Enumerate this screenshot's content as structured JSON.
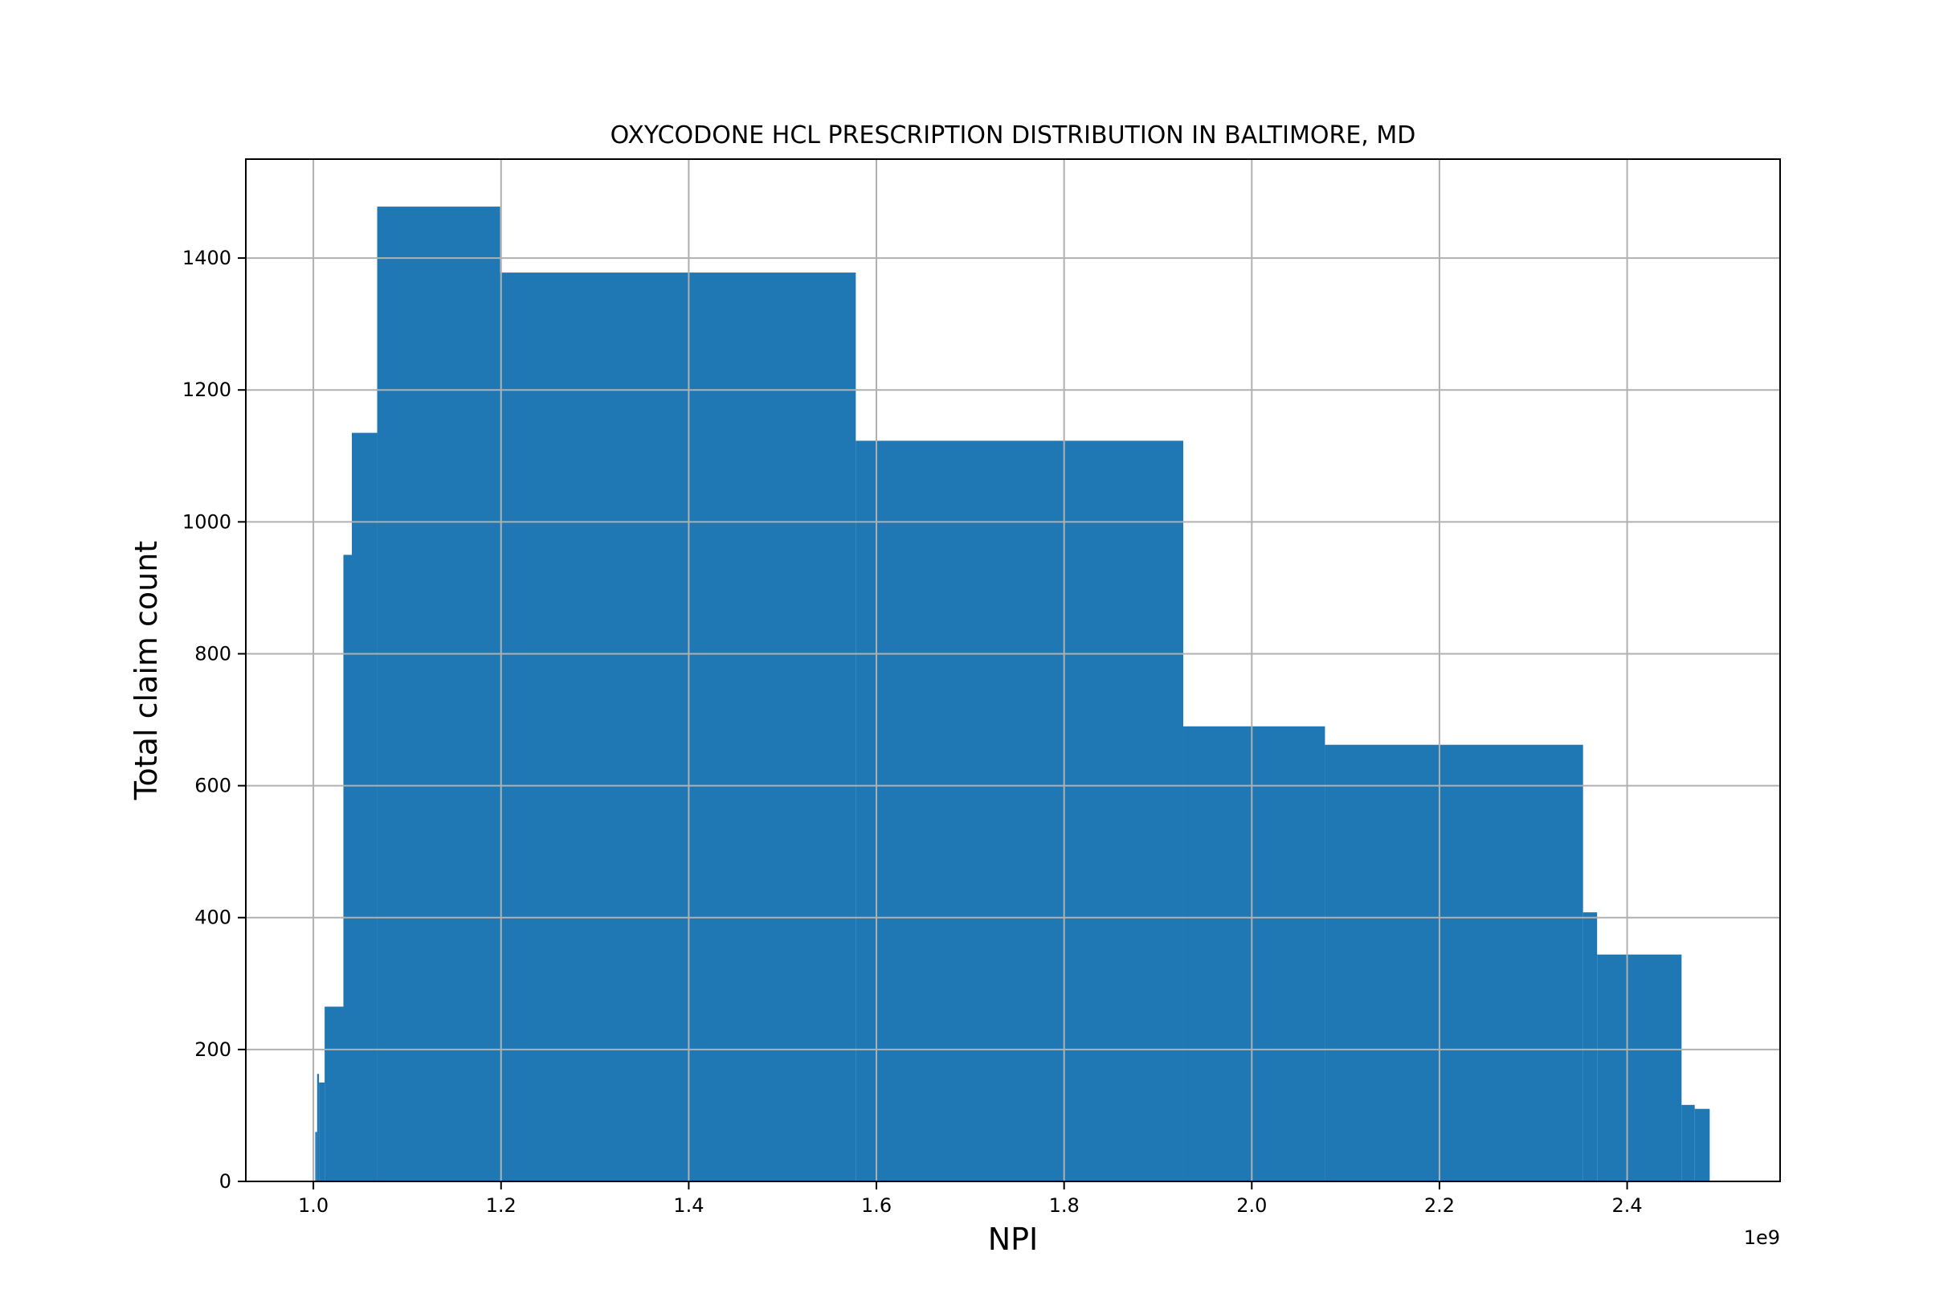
{
  "chart_data": {
    "type": "bar",
    "title": "OXYCODONE HCL PRESCRIPTION DISTRIBUTION IN BALTIMORE, MD",
    "xlabel": "NPI",
    "ylabel": "Total claim count",
    "x_offset_label": "1e9",
    "xlim": [
      0.928,
      2.563
    ],
    "ylim": [
      0,
      1550
    ],
    "x_ticks": [
      1.0,
      1.2,
      1.4,
      1.6,
      1.8,
      2.0,
      2.2,
      2.4
    ],
    "x_tick_labels": [
      "1.0",
      "1.2",
      "1.4",
      "1.6",
      "1.8",
      "2.0",
      "2.2",
      "2.4"
    ],
    "y_ticks": [
      0,
      200,
      400,
      600,
      800,
      1000,
      1200,
      1400
    ],
    "y_tick_labels": [
      "0",
      "200",
      "400",
      "600",
      "800",
      "1000",
      "1200",
      "1400"
    ],
    "grid": true,
    "color": "#1f77b4",
    "bars": [
      {
        "x0": 1.002,
        "x1": 1.004,
        "value": 75
      },
      {
        "x0": 1.004,
        "x1": 1.006,
        "value": 163
      },
      {
        "x0": 1.006,
        "x1": 1.012,
        "value": 150
      },
      {
        "x0": 1.012,
        "x1": 1.032,
        "value": 265
      },
      {
        "x0": 1.032,
        "x1": 1.041,
        "value": 950
      },
      {
        "x0": 1.041,
        "x1": 1.068,
        "value": 1135
      },
      {
        "x0": 1.068,
        "x1": 1.199,
        "value": 1478
      },
      {
        "x0": 1.199,
        "x1": 1.578,
        "value": 1378
      },
      {
        "x0": 1.578,
        "x1": 1.927,
        "value": 1123
      },
      {
        "x0": 1.927,
        "x1": 2.078,
        "value": 690
      },
      {
        "x0": 2.078,
        "x1": 2.353,
        "value": 662
      },
      {
        "x0": 2.353,
        "x1": 2.368,
        "value": 408
      },
      {
        "x0": 2.368,
        "x1": 2.458,
        "value": 344
      },
      {
        "x0": 2.458,
        "x1": 2.472,
        "value": 116
      },
      {
        "x0": 2.472,
        "x1": 2.488,
        "value": 110
      }
    ]
  }
}
